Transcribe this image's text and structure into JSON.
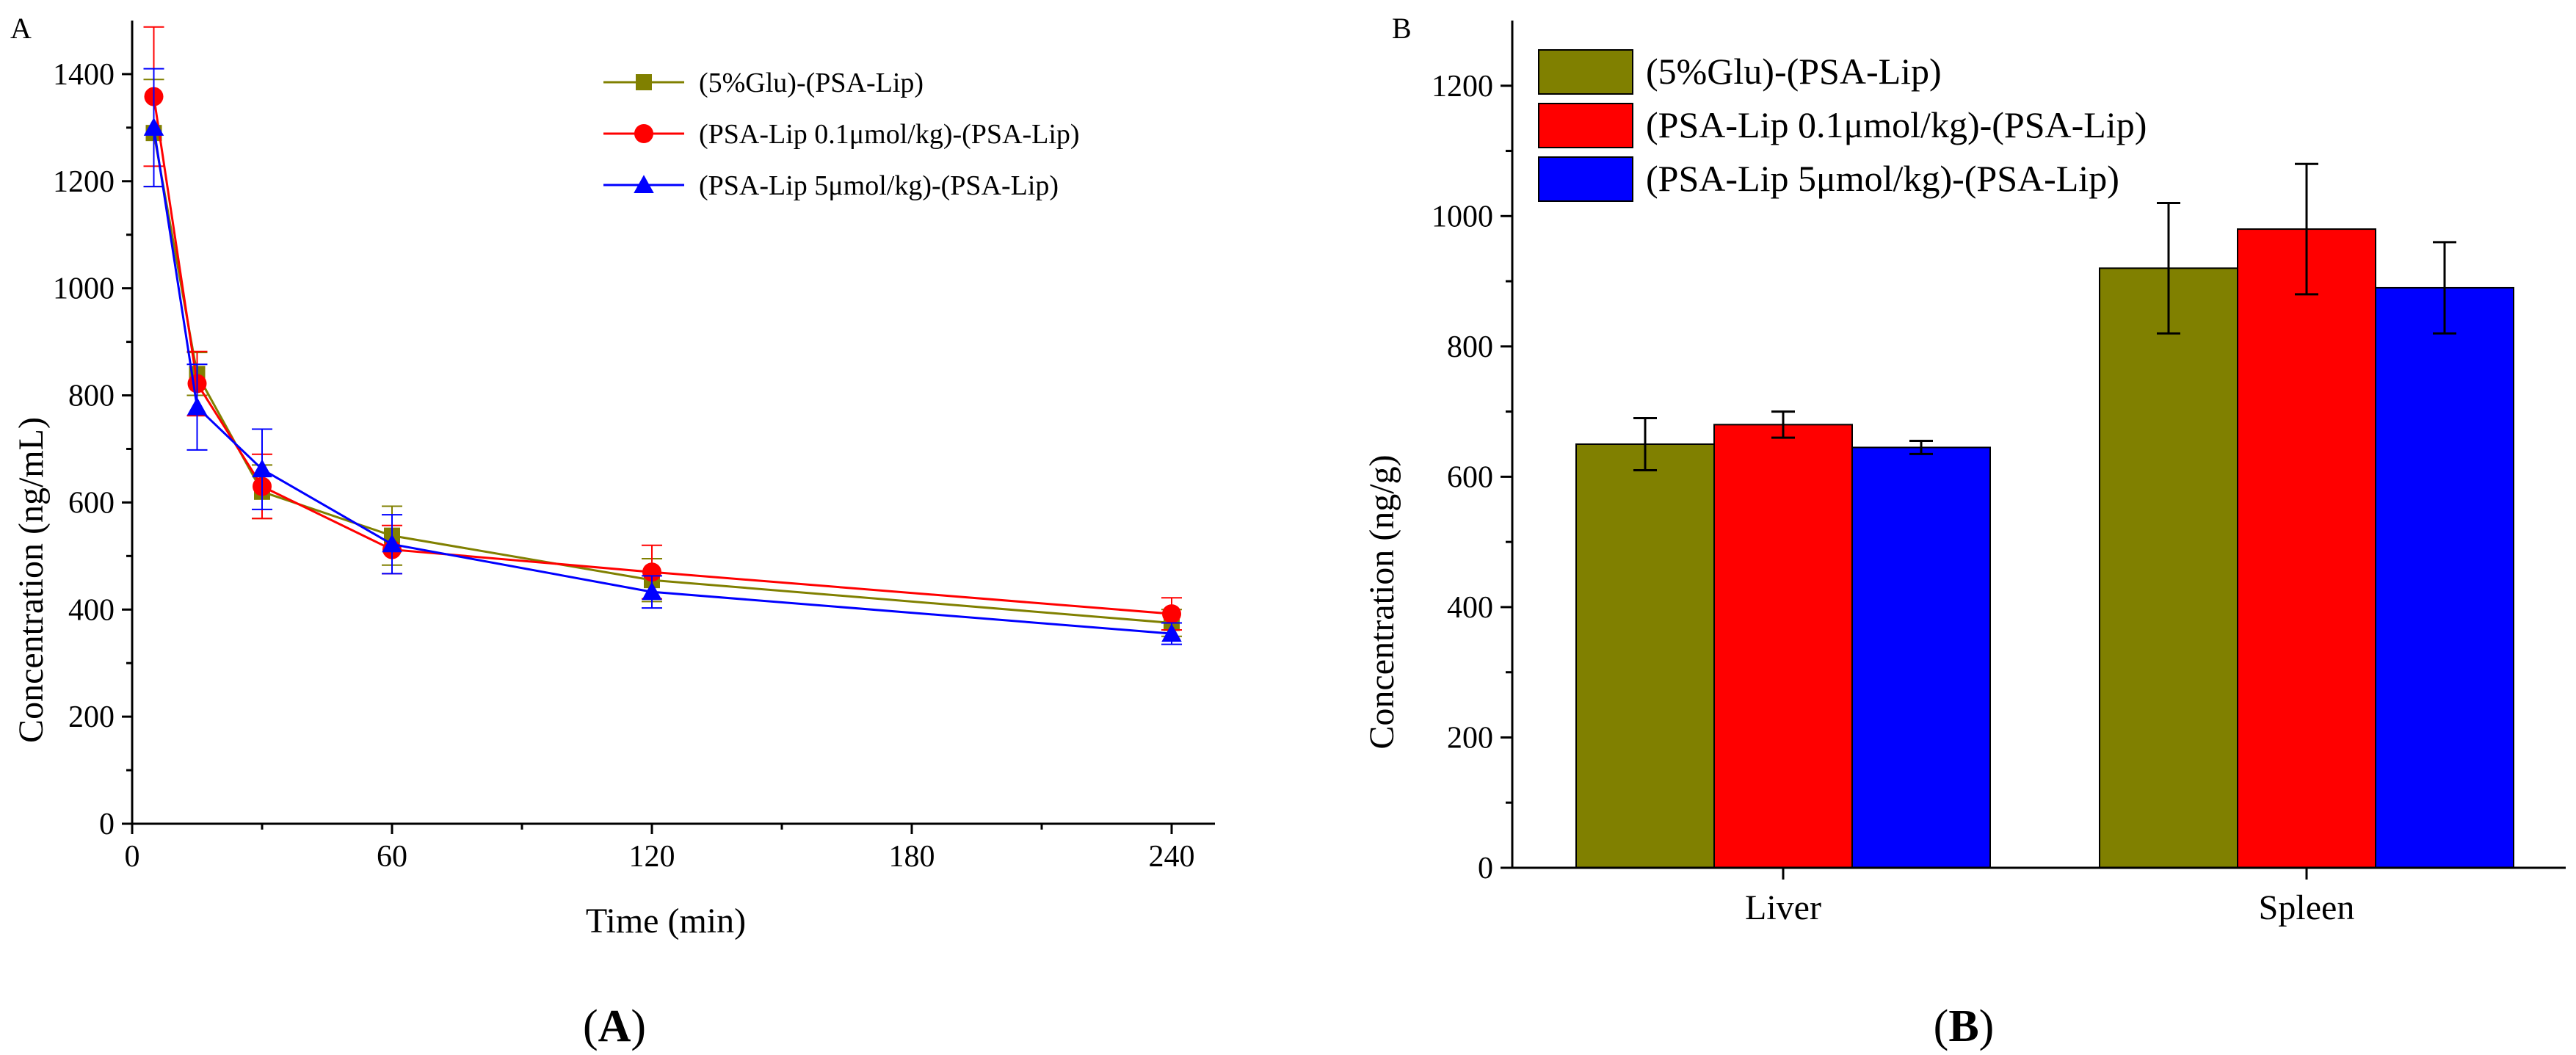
{
  "figure": {
    "caption_a": {
      "open": "(",
      "letter": "A",
      "close": ")"
    },
    "caption_b": {
      "open": "(",
      "letter": "B",
      "close": ")"
    }
  },
  "colors": {
    "olive": "#808000",
    "red": "#FF0000",
    "blue": "#0000FF"
  },
  "chart_data": [
    {
      "id": "A",
      "type": "line",
      "corner_label": "A",
      "title": "",
      "xlabel": "Time (min)",
      "ylabel": "Concentration (ng/mL)",
      "xlim": [
        0,
        250
      ],
      "ylim": [
        0,
        1500
      ],
      "xticks": [
        0,
        60,
        120,
        180,
        240
      ],
      "yticks": [
        0,
        200,
        400,
        600,
        800,
        1000,
        1200,
        1400
      ],
      "grid": false,
      "legend_position": "top-right",
      "x": [
        5,
        15,
        30,
        60,
        120,
        240
      ],
      "series": [
        {
          "name": "(5%Glu)-(PSA-Lip)",
          "marker": "square",
          "color": "#808000",
          "values": [
            1290,
            840,
            620,
            538,
            455,
            375
          ],
          "errors": [
            100,
            40,
            50,
            55,
            40,
            25
          ]
        },
        {
          "name": "(PSA-Lip 0.1μmol/kg)-(PSA-Lip)",
          "marker": "circle",
          "color": "#FF0000",
          "values": [
            1358,
            822,
            630,
            512,
            470,
            392
          ],
          "errors": [
            130,
            60,
            60,
            45,
            50,
            30
          ]
        },
        {
          "name": "(PSA-Lip 5μmol/kg)-(PSA-Lip)",
          "marker": "triangle",
          "color": "#0000FF",
          "values": [
            1300,
            778,
            662,
            522,
            433,
            355
          ],
          "errors": [
            110,
            80,
            75,
            55,
            30,
            20
          ]
        }
      ]
    },
    {
      "id": "B",
      "type": "bar",
      "corner_label": "B",
      "title": "",
      "xlabel": "",
      "ylabel": "Concentration (ng/g)",
      "ylim": [
        0,
        1300
      ],
      "yticks": [
        0,
        200,
        400,
        600,
        800,
        1000,
        1200
      ],
      "grid": false,
      "legend_position": "top-left",
      "categories": [
        "Liver",
        "Spleen"
      ],
      "series": [
        {
          "name": "(5%Glu)-(PSA-Lip)",
          "color": "#808000",
          "values": [
            650,
            920
          ],
          "errors": [
            40,
            100
          ]
        },
        {
          "name": "(PSA-Lip 0.1μmol/kg)-(PSA-Lip)",
          "color": "#FF0000",
          "values": [
            680,
            980
          ],
          "errors": [
            20,
            100
          ]
        },
        {
          "name": "(PSA-Lip 5μmol/kg)-(PSA-Lip)",
          "color": "#0000FF",
          "values": [
            645,
            890
          ],
          "errors": [
            10,
            70
          ]
        }
      ]
    }
  ]
}
